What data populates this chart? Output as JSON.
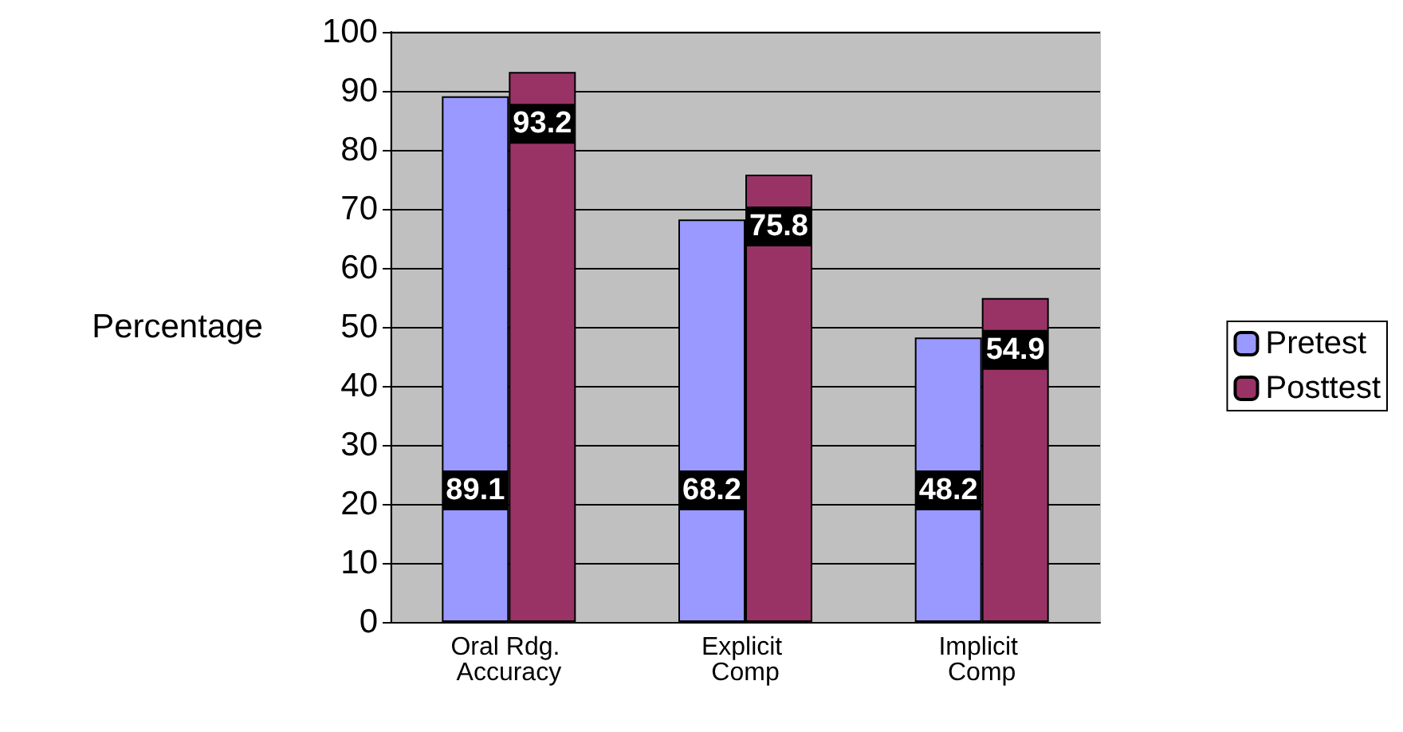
{
  "chart_data": {
    "type": "bar",
    "ylabel": "Percentage",
    "categories": [
      "Oral Rdg. Accuracy",
      "Explicit Comp",
      "Implicit Comp"
    ],
    "series": [
      {
        "name": "Pretest",
        "color": "#9999ff",
        "values": [
          89.1,
          68.2,
          48.2
        ]
      },
      {
        "name": "Posttest",
        "color": "#993366",
        "values": [
          93.2,
          75.8,
          54.9
        ]
      }
    ],
    "ylim": [
      0,
      100
    ],
    "yticks": [
      0,
      10,
      20,
      30,
      40,
      50,
      60,
      70,
      80,
      90,
      100
    ],
    "grid": "y",
    "legend": "right",
    "data_labels": true
  }
}
